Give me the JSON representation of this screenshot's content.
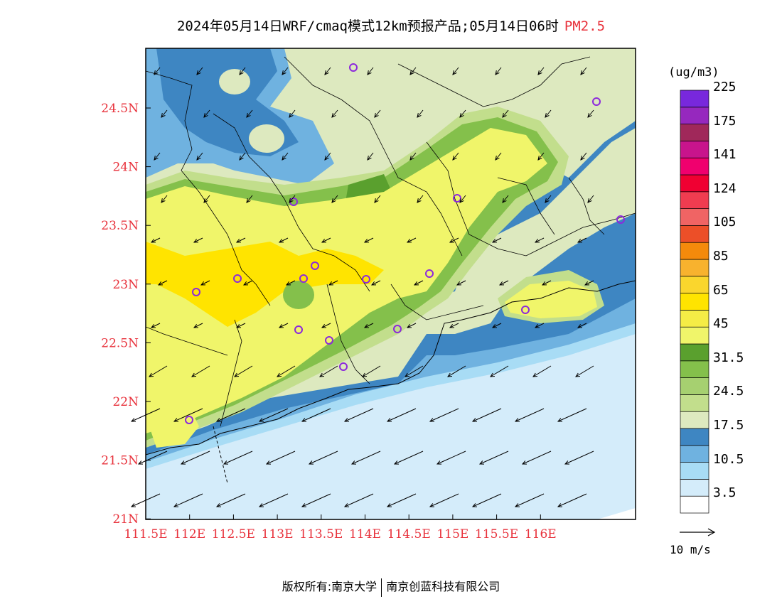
{
  "title": {
    "main": "2024年05月14日WRF/cmaq模式12km预报产品;05月14日06时",
    "pollutant": "PM2.5"
  },
  "axes": {
    "x_ticks": [
      "111.5E",
      "112E",
      "112.5E",
      "113E",
      "113.5E",
      "114E",
      "114.5E",
      "115E",
      "115.5E",
      "116E"
    ],
    "y_ticks": [
      "24.5N",
      "24N",
      "23.5N",
      "23N",
      "22.5N",
      "22N",
      "21.5N",
      "21N"
    ]
  },
  "legend": {
    "unit": "(ug/m3)",
    "colors": [
      "#ffffff",
      "#d4ecfa",
      "#a8dcf5",
      "#6fb2e0",
      "#3e86c2",
      "#dde9bf",
      "#c2de8c",
      "#a6d070",
      "#84c04b",
      "#5aa02e",
      "#f0f56a",
      "#f5ec46",
      "#ffe400",
      "#fad62d",
      "#f8b22e",
      "#f48a0b",
      "#ec4f28",
      "#f06464",
      "#f03c50",
      "#f00032",
      "#f0006e",
      "#c8148c",
      "#a0285a",
      "#9628be",
      "#7828dc"
    ],
    "labels": [
      "3.5",
      "10.5",
      "17.5",
      "24.5",
      "31.5",
      "45",
      "65",
      "85",
      "105",
      "124",
      "141",
      "175",
      "225"
    ]
  },
  "wind_scale": {
    "label": "10 m/s"
  },
  "map_colors": {
    "sea": "#d4ecfa",
    "blue1": "#a8dcf5",
    "blue2": "#6fb2e0",
    "blue3": "#3e86c2",
    "pale_green": "#dde9bf",
    "light_green": "#c2de8c",
    "green": "#a6d070",
    "dark_green": "#5aa02e",
    "yellow": "#f0f56a",
    "yellow2": "#ffe400",
    "marker": "#8c28dc"
  },
  "footer": {
    "left": "版权所有:南京大学",
    "right": "南京创蓝科技有限公司"
  }
}
